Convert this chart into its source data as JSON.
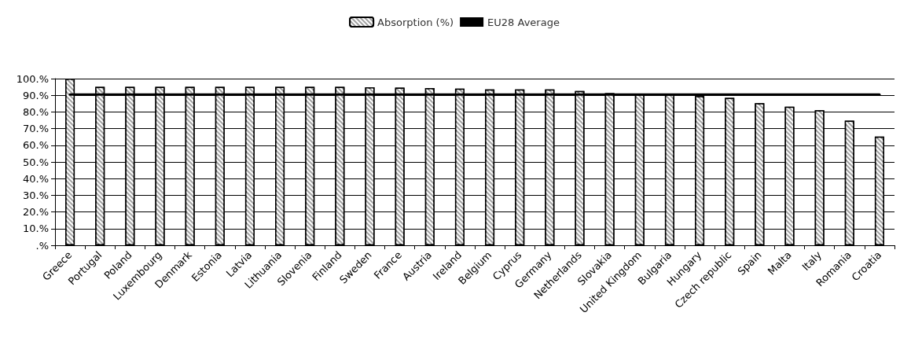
{
  "chart_data": {
    "type": "bar",
    "categories": [
      "Greece",
      "Portugal",
      "Poland",
      "Luxembourg",
      "Denmark",
      "Estonia",
      "Latvia",
      "Lithuania",
      "Slovenia",
      "Finland",
      "Sweden",
      "France",
      "Austria",
      "Ireland",
      "Belgium",
      "Cyprus",
      "Germany",
      "Netherlands",
      "Slovakia",
      "United Kingdom",
      "Bulgaria",
      "Hungary",
      "Czech republic",
      "Spain",
      "Malta",
      "Italy",
      "Romania",
      "Croatia"
    ],
    "series": [
      {
        "name": "Absorption (%)",
        "color": "#a0a0a0",
        "values": [
          100,
          95,
          95,
          95,
          95,
          95,
          95,
          95,
          95,
          95,
          94.8,
          94.6,
          94.3,
          94,
          93.5,
          93.5,
          93.5,
          92.6,
          91.3,
          90.5,
          90.5,
          89.5,
          88.5,
          85.3,
          83.1,
          81,
          74.8,
          65.2
        ]
      },
      {
        "name": "EU28 Average",
        "type": "line",
        "color": "#000000",
        "values": [
          90.5,
          90.5,
          90.5,
          90.5,
          90.5,
          90.5,
          90.5,
          90.5,
          90.5,
          90.5,
          90.5,
          90.5,
          90.5,
          90.5,
          90.5,
          90.5,
          90.5,
          90.5,
          90.5,
          90.5,
          90.5,
          90.5,
          90.5,
          90.5,
          90.5,
          90.5,
          90.5,
          90.5
        ]
      }
    ],
    "ylim": [
      0,
      100
    ],
    "yticks": [
      {
        "value": 0,
        "label": ".%"
      },
      {
        "value": 10,
        "label": "10.%"
      },
      {
        "value": 20,
        "label": "20.%"
      },
      {
        "value": 30,
        "label": "30.%"
      },
      {
        "value": 40,
        "label": "40.%"
      },
      {
        "value": 50,
        "label": "50.%"
      },
      {
        "value": 60,
        "label": "60.%"
      },
      {
        "value": 70,
        "label": "70.%"
      },
      {
        "value": 80,
        "label": "80.%"
      },
      {
        "value": 90,
        "label": "90.%"
      },
      {
        "value": 100,
        "label": "100.%"
      }
    ],
    "grid": "y",
    "legend": "top",
    "marker": "none"
  }
}
